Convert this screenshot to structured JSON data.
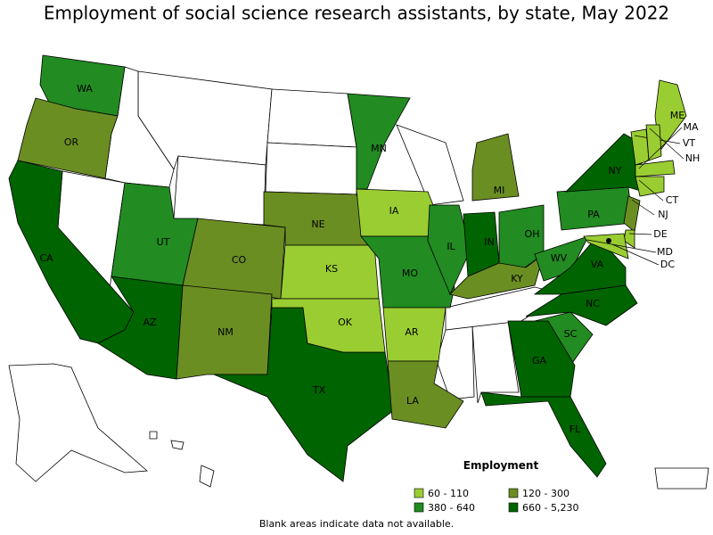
{
  "title": "Employment of social science research assistants, by state, May 2022",
  "map": {
    "states": [
      {
        "label": "WA",
        "color": "#228b22"
      },
      {
        "label": "OR",
        "color": "#6b8e23"
      },
      {
        "label": "CA",
        "color": "#006400"
      },
      {
        "label": "AZ",
        "color": "#006400"
      },
      {
        "label": "UT",
        "color": "#228b22"
      },
      {
        "label": "CO",
        "color": "#6b8e23"
      },
      {
        "label": "NM",
        "color": "#6b8e23"
      },
      {
        "label": "TX",
        "color": "#006400"
      },
      {
        "label": "NE",
        "color": "#6b8e23"
      },
      {
        "label": "KS",
        "color": "#9acd32"
      },
      {
        "label": "OK",
        "color": "#9acd32"
      },
      {
        "label": "MN",
        "color": "#228b22"
      },
      {
        "label": "IA",
        "color": "#9acd32"
      },
      {
        "label": "MO",
        "color": "#228b22"
      },
      {
        "label": "AR",
        "color": "#9acd32"
      },
      {
        "label": "LA",
        "color": "#6b8e23"
      },
      {
        "label": "IL",
        "color": "#228b22"
      },
      {
        "label": "IN",
        "color": "#006400"
      },
      {
        "label": "MI",
        "color": "#6b8e23"
      },
      {
        "label": "OH",
        "color": "#228b22"
      },
      {
        "label": "KY",
        "color": "#6b8e23"
      },
      {
        "label": "WV",
        "color": "#228b22"
      },
      {
        "label": "VA",
        "color": "#006400"
      },
      {
        "label": "NC",
        "color": "#006400"
      },
      {
        "label": "SC",
        "color": "#228b22"
      },
      {
        "label": "GA",
        "color": "#006400"
      },
      {
        "label": "FL",
        "color": "#006400"
      },
      {
        "label": "PA",
        "color": "#228b22"
      },
      {
        "label": "NY",
        "color": "#006400"
      },
      {
        "label": "NJ",
        "color": "#6b8e23"
      },
      {
        "label": "DE",
        "color": "#9acd32"
      },
      {
        "label": "MD",
        "color": "#9acd32"
      },
      {
        "label": "DC",
        "color": "#006400"
      },
      {
        "label": "ME",
        "color": "#9acd32"
      },
      {
        "label": "VT",
        "color": "#9acd32"
      },
      {
        "label": "NH",
        "color": "#9acd32"
      },
      {
        "label": "CT",
        "color": "#9acd32"
      },
      {
        "label": "MA",
        "color": "#9acd32"
      }
    ]
  },
  "legend": {
    "title": "Employment",
    "items": [
      {
        "label": "60 - 110",
        "color": "#9acd32"
      },
      {
        "label": "120 - 300",
        "color": "#6b8e23"
      },
      {
        "label": "380 - 640",
        "color": "#228b22"
      },
      {
        "label": "660 - 5,230",
        "color": "#006400"
      }
    ]
  },
  "note": "Blank areas indicate data not available."
}
